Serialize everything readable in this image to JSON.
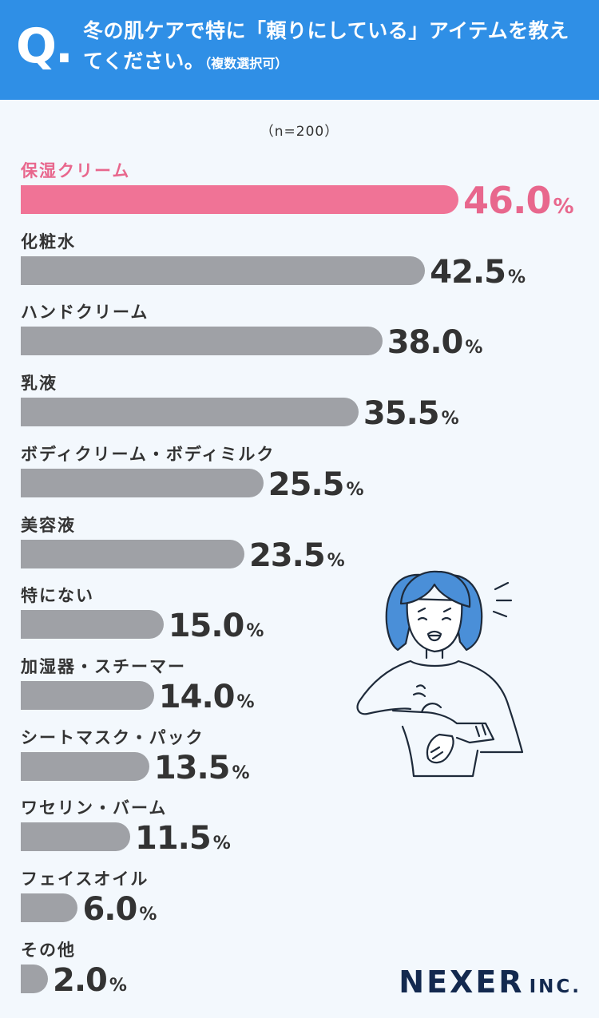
{
  "header": {
    "q_mark": "Q.",
    "question": "冬の肌ケアで特に「頼りにしている」アイテムを教えてください。",
    "note": "（複数選択可）"
  },
  "sample_size": "（n=200）",
  "logo": {
    "main": "NEXER",
    "suffix": "INC."
  },
  "colors": {
    "header_bg": "#2f8fe6",
    "highlight": "#f07396",
    "bar": "#9fa1a6",
    "page_bg": "#f3f8fd"
  },
  "chart_data": {
    "type": "bar",
    "orientation": "horizontal",
    "unit": "%",
    "categories": [
      "保湿クリーム",
      "化粧水",
      "ハンドクリーム",
      "乳液",
      "ボディクリーム・ボディミルク",
      "美容液",
      "特にない",
      "加湿器・スチーマー",
      "シートマスク・パック",
      "ワセリン・バーム",
      "フェイスオイル",
      "その他"
    ],
    "values": [
      46.0,
      42.5,
      38.0,
      35.5,
      25.5,
      23.5,
      15.0,
      14.0,
      13.5,
      11.5,
      6.0,
      2.0
    ],
    "value_labels": [
      "46.0",
      "42.5",
      "38.0",
      "35.5",
      "25.5",
      "23.5",
      "15.0",
      "14.0",
      "13.5",
      "11.5",
      "6.0",
      "2.0"
    ],
    "highlight_index": 0,
    "xlim": [
      0,
      50
    ],
    "grid": false
  }
}
